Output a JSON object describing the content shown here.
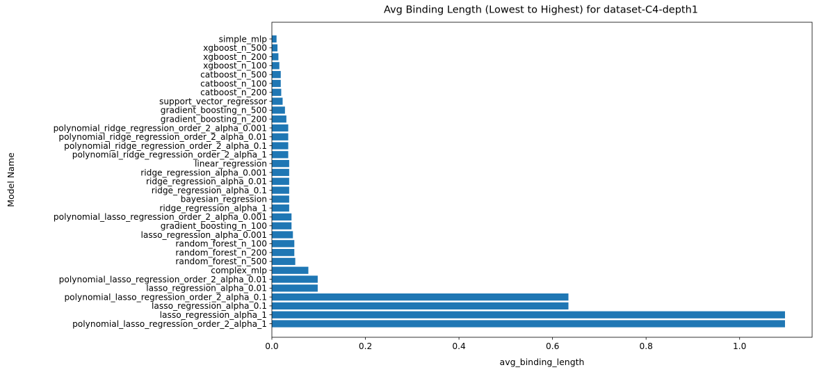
{
  "chart_data": {
    "type": "bar",
    "orientation": "horizontal",
    "title": "Avg Binding Length (Lowest to Highest) for dataset-C4-depth1",
    "xlabel": "avg_binding_length",
    "ylabel": "Model Name",
    "xlim": [
      0,
      1.155
    ],
    "x_ticks": [
      0.0,
      0.2,
      0.4,
      0.6,
      0.8,
      1.0
    ],
    "x_tick_labels": [
      "0.0",
      "0.2",
      "0.4",
      "0.6",
      "0.8",
      "1.0"
    ],
    "grid": false,
    "bar_color": "#1f77b4",
    "categories": [
      "simple_mlp",
      "xgboost_n_500",
      "xgboost_n_200",
      "xgboost_n_100",
      "catboost_n_500",
      "catboost_n_100",
      "catboost_n_200",
      "support_vector_regressor",
      "gradient_boosting_n_500",
      "gradient_boosting_n_200",
      "polynomial_ridge_regression_order_2_alpha_0.001",
      "polynomial_ridge_regression_order_2_alpha_0.01",
      "polynomial_ridge_regression_order_2_alpha_0.1",
      "polynomial_ridge_regression_order_2_alpha_1",
      "linear_regression",
      "ridge_regression_alpha_0.001",
      "ridge_regression_alpha_0.01",
      "ridge_regression_alpha_0.1",
      "bayesian_regression",
      "ridge_regression_alpha_1",
      "polynomial_lasso_regression_order_2_alpha_0.001",
      "gradient_boosting_n_100",
      "lasso_regression_alpha_0.001",
      "random_forest_n_100",
      "random_forest_n_200",
      "random_forest_n_500",
      "complex_mlp",
      "polynomial_lasso_regression_order_2_alpha_0.01",
      "lasso_regression_alpha_0.01",
      "polynomial_lasso_regression_order_2_alpha_0.1",
      "lasso_regression_alpha_0.1",
      "lasso_regression_alpha_1",
      "polynomial_lasso_regression_order_2_alpha_1"
    ],
    "values": [
      0.01,
      0.012,
      0.014,
      0.016,
      0.019,
      0.019,
      0.02,
      0.023,
      0.028,
      0.031,
      0.035,
      0.035,
      0.035,
      0.035,
      0.037,
      0.037,
      0.037,
      0.037,
      0.037,
      0.037,
      0.042,
      0.042,
      0.045,
      0.048,
      0.048,
      0.05,
      0.078,
      0.098,
      0.098,
      0.634,
      0.634,
      1.097,
      1.097
    ]
  }
}
